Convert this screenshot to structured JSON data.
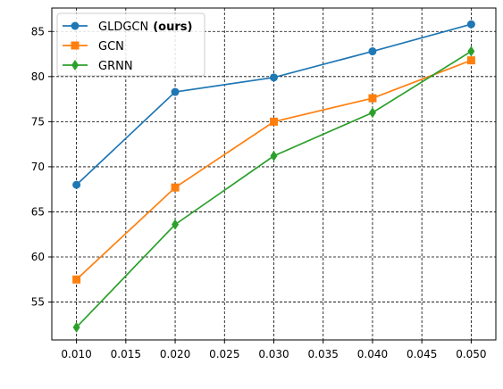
{
  "chart_data": {
    "type": "line",
    "title": "",
    "xlabel": "",
    "ylabel": "",
    "x": [
      0.01,
      0.02,
      0.03,
      0.04,
      0.05
    ],
    "xlim": [
      0.0075,
      0.0525
    ],
    "ylim": [
      50.8,
      87.6
    ],
    "x_ticks": [
      "0.010",
      "0.015",
      "0.020",
      "0.025",
      "0.030",
      "0.035",
      "0.040",
      "0.045",
      "0.050"
    ],
    "y_ticks": [
      "55",
      "60",
      "65",
      "70",
      "75",
      "80",
      "85"
    ],
    "grid": true,
    "grid_style": "dashed",
    "legend_position": "top-left",
    "series": [
      {
        "name": "GLDGCN",
        "name_suffix": "(ours)",
        "color": "#1f77b4",
        "marker": "circle",
        "values": [
          68.0,
          78.3,
          79.9,
          82.8,
          85.8
        ]
      },
      {
        "name": "GCN",
        "name_suffix": "",
        "color": "#ff7f0e",
        "marker": "square",
        "values": [
          57.5,
          67.7,
          75.0,
          77.6,
          81.8
        ]
      },
      {
        "name": "GRNN",
        "name_suffix": "",
        "color": "#2ca02c",
        "marker": "diamond",
        "values": [
          52.2,
          63.6,
          71.2,
          76.0,
          82.8
        ]
      }
    ]
  }
}
